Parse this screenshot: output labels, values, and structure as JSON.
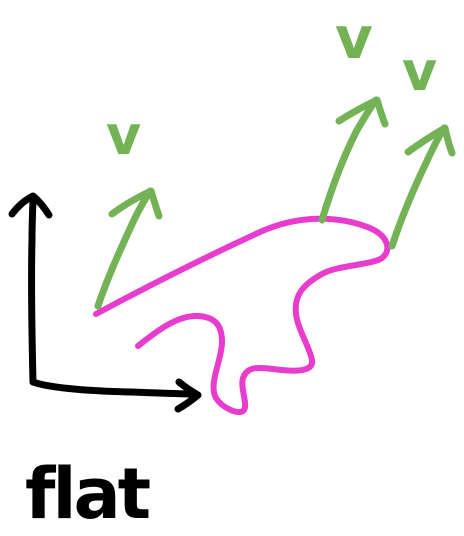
{
  "diagram": {
    "colors": {
      "axes": "#000000",
      "curve": "#e83ccf",
      "vectors": "#73b255"
    },
    "curve_label": "",
    "axes_label": "flat",
    "vector_label": "v",
    "vector_count": 3,
    "icons": {
      "axes": "axes-icon",
      "curve": "curve-icon",
      "vector": "arrow-icon"
    }
  }
}
